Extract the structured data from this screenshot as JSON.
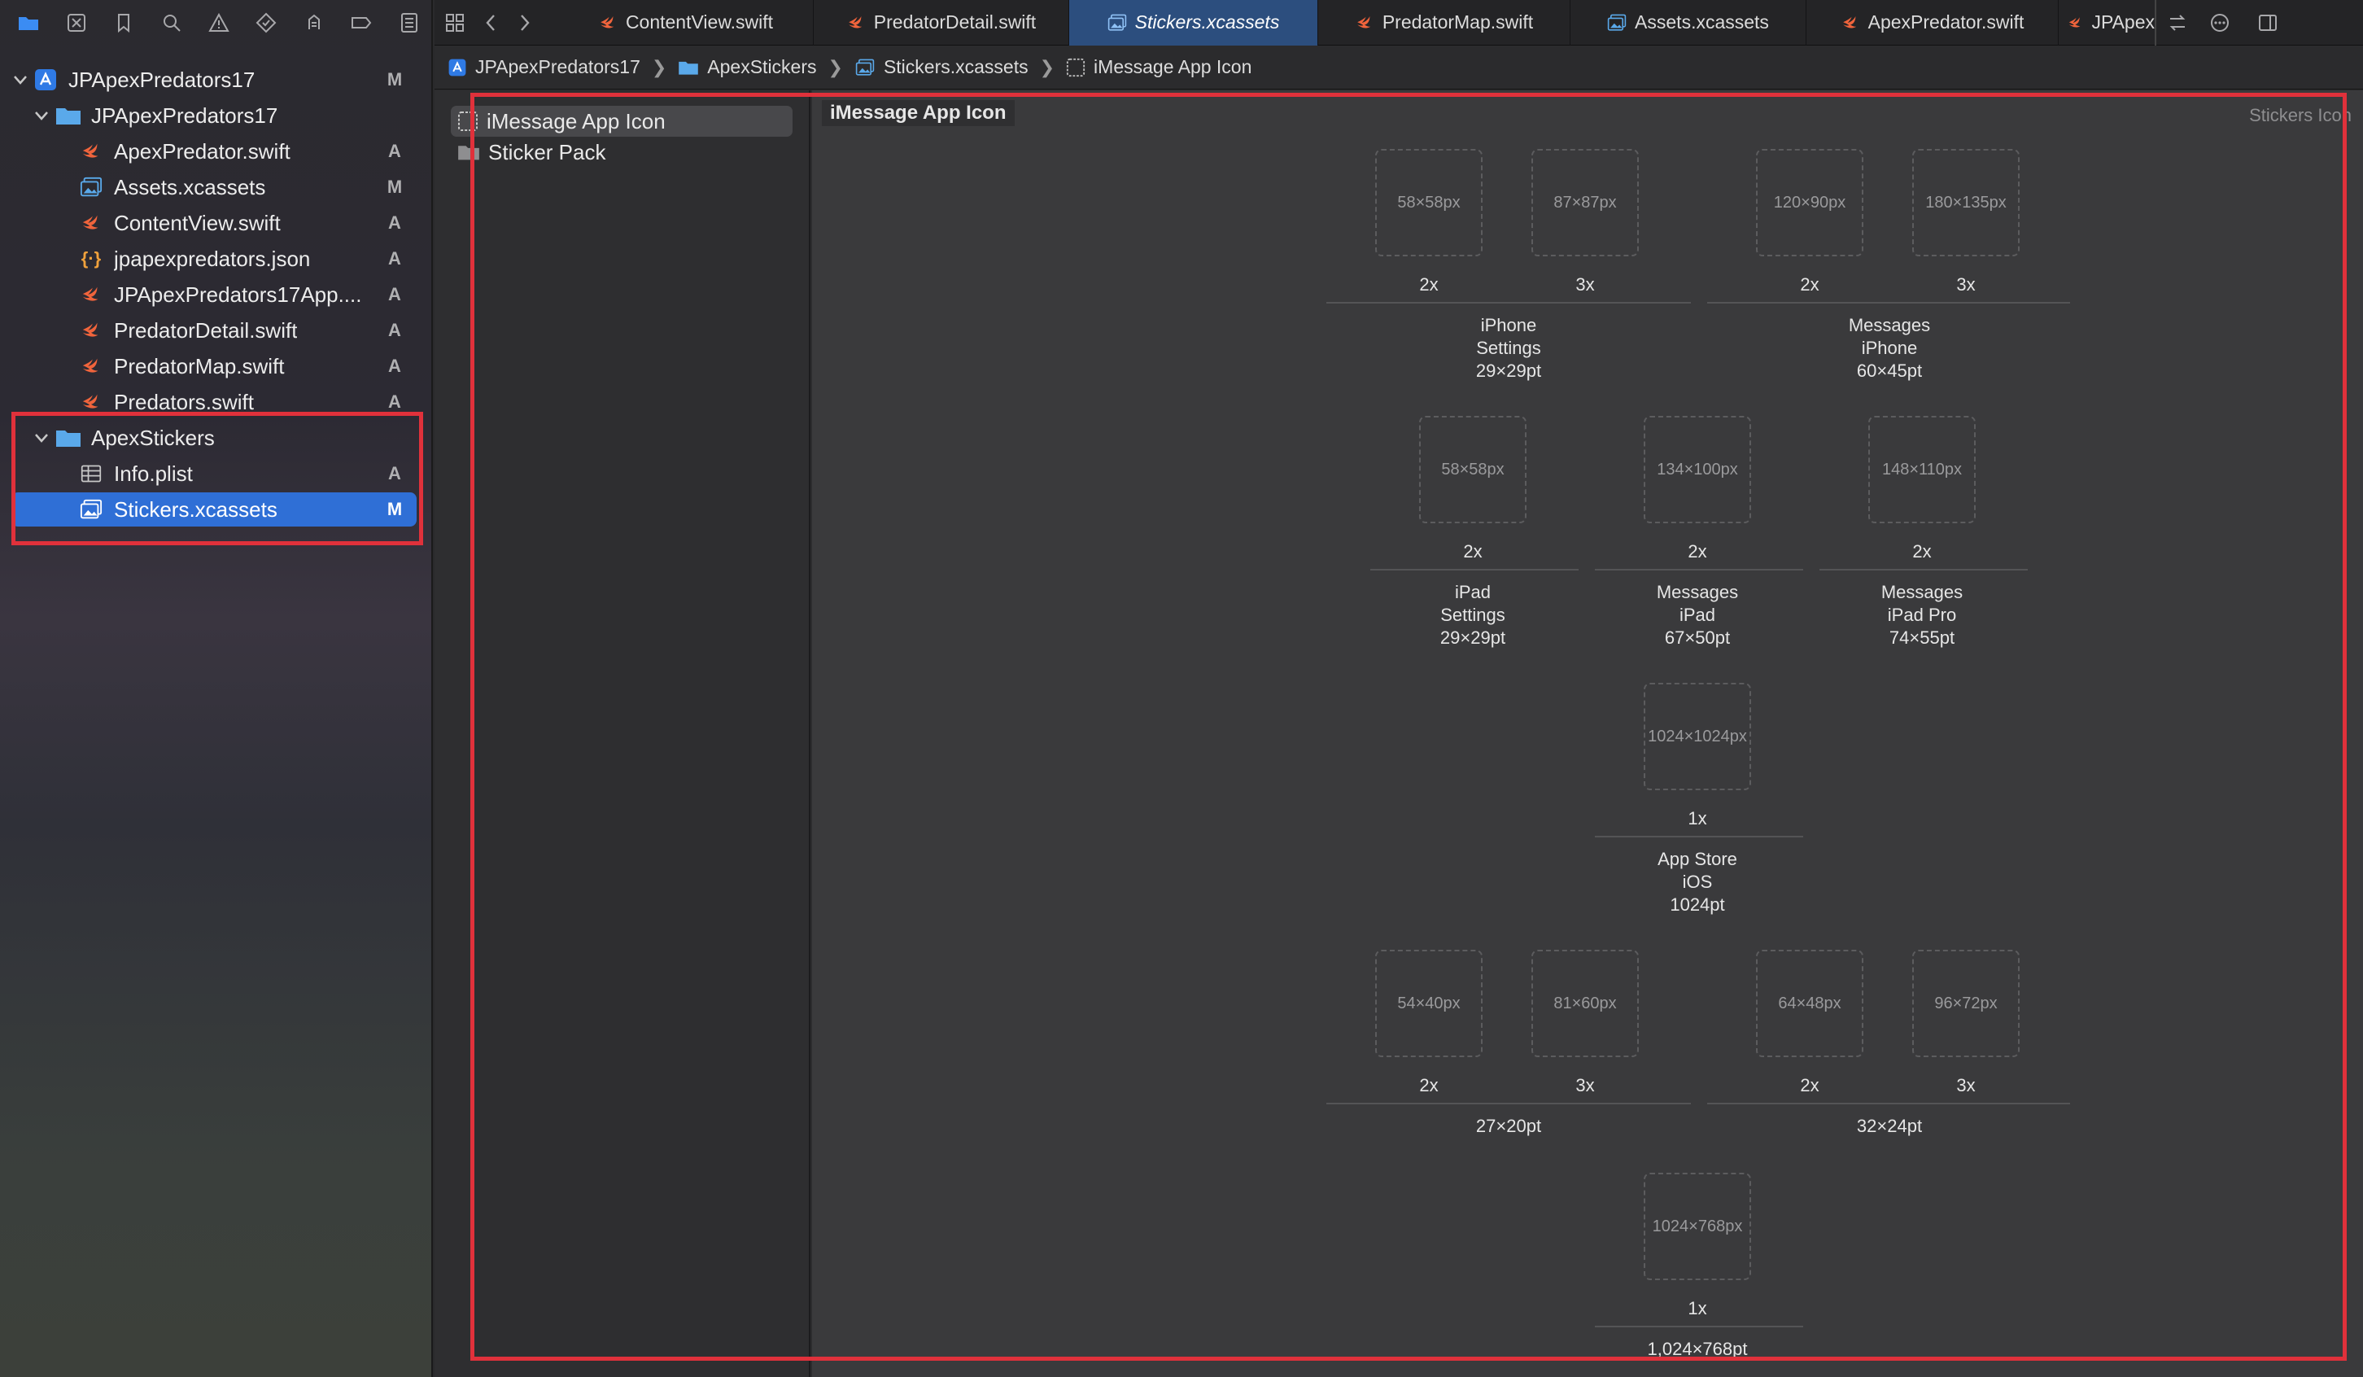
{
  "navigator": {
    "project_status": "M",
    "rows": [
      {
        "label": "JPApexPredators17",
        "status": "M"
      },
      {
        "label": "JPApexPredators17",
        "status": ""
      },
      {
        "label": "ApexPredator.swift",
        "status": "A"
      },
      {
        "label": "Assets.xcassets",
        "status": "M"
      },
      {
        "label": "ContentView.swift",
        "status": "A"
      },
      {
        "label": "jpapexpredators.json",
        "status": "A"
      },
      {
        "label": "JPApexPredators17App....",
        "status": "A"
      },
      {
        "label": "PredatorDetail.swift",
        "status": "A"
      },
      {
        "label": "PredatorMap.swift",
        "status": "A"
      },
      {
        "label": "Predators.swift",
        "status": "A"
      },
      {
        "label": "ApexStickers",
        "status": ""
      },
      {
        "label": "Info.plist",
        "status": "A"
      },
      {
        "label": "Stickers.xcassets",
        "status": "M"
      }
    ]
  },
  "tabs": [
    {
      "label": "ContentView.swift"
    },
    {
      "label": "PredatorDetail.swift"
    },
    {
      "label": "Stickers.xcassets"
    },
    {
      "label": "PredatorMap.swift"
    },
    {
      "label": "Assets.xcassets"
    },
    {
      "label": "ApexPredator.swift"
    },
    {
      "label": "JPApex"
    }
  ],
  "breadcrumb": [
    "JPApexPredators17",
    "ApexStickers",
    "Stickers.xcassets",
    "iMessage App Icon"
  ],
  "asset_list": [
    {
      "label": "iMessage App Icon"
    },
    {
      "label": "Sticker Pack"
    }
  ],
  "detail": {
    "title": "iMessage App Icon",
    "right_label": "Stickers Icon",
    "slots": {
      "s1": {
        "size": "58×58px",
        "scale": "2x"
      },
      "s2": {
        "size": "87×87px",
        "scale": "3x"
      },
      "s3": {
        "size": "120×90px",
        "scale": "2x"
      },
      "s4": {
        "size": "180×135px",
        "scale": "3x"
      },
      "s5": {
        "size": "58×58px",
        "scale": "2x"
      },
      "s6": {
        "size": "134×100px",
        "scale": "2x"
      },
      "s7": {
        "size": "148×110px",
        "scale": "2x"
      },
      "s8": {
        "size": "1024×1024px",
        "scale": "1x"
      },
      "s9": {
        "size": "54×40px",
        "scale": "2x"
      },
      "s10": {
        "size": "81×60px",
        "scale": "3x"
      },
      "s11": {
        "size": "64×48px",
        "scale": "2x"
      },
      "s12": {
        "size": "96×72px",
        "scale": "3x"
      },
      "s13": {
        "size": "1024×768px",
        "scale": "1x"
      }
    },
    "groups": {
      "g1": "iPhone\nSettings\n29×29pt",
      "g2": "Messages\niPhone\n60×45pt",
      "g3": "iPad\nSettings\n29×29pt",
      "g4": "Messages\niPad\n67×50pt",
      "g5": "Messages\niPad Pro\n74×55pt",
      "g6": "App Store\niOS\n1024pt",
      "g7": "27×20pt",
      "g8": "32×24pt",
      "g9": "1,024×768pt"
    }
  },
  "colors": {
    "accent": "#2f6fd6",
    "highlight_box": "#e0313b",
    "swift_orange": "#f0643c",
    "folder_blue": "#5aa9ea"
  }
}
